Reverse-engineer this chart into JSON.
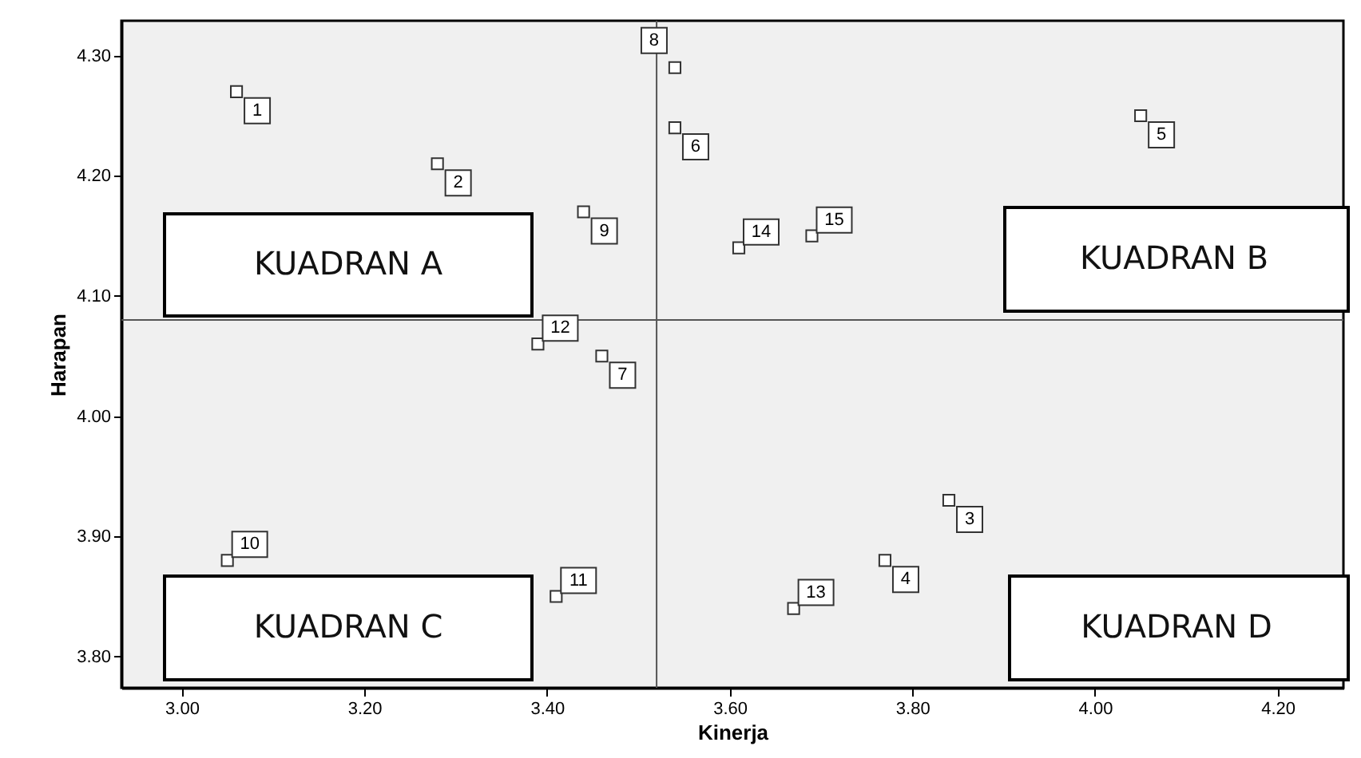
{
  "chart_data": {
    "type": "scatter",
    "xlabel": "Kinerja",
    "ylabel": "Harapan",
    "x": [
      3.06,
      3.28,
      3.84,
      3.77,
      4.05,
      3.54,
      3.46,
      3.54,
      3.44,
      3.05,
      3.41,
      3.39,
      3.67,
      3.61,
      3.69
    ],
    "series": [
      {
        "color": "#333333",
        "values": [
          4.27,
          4.21,
          3.93,
          3.88,
          4.25,
          4.24,
          4.05,
          4.29,
          4.17,
          3.88,
          3.85,
          4.06,
          3.84,
          4.14,
          4.15
        ]
      }
    ],
    "marker": "square",
    "grid": false,
    "xlim": [
      2.934,
      4.272
    ],
    "ylim": [
      3.774,
      4.329
    ],
    "xticks": [
      {
        "value": 3.0,
        "label": "3.00"
      },
      {
        "value": 3.2,
        "label": "3.20"
      },
      {
        "value": 3.4,
        "label": "3.40"
      },
      {
        "value": 3.6,
        "label": "3.60"
      },
      {
        "value": 3.8,
        "label": "3.80"
      },
      {
        "value": 4.0,
        "label": "4.00"
      },
      {
        "value": 4.2,
        "label": "4.20"
      }
    ],
    "yticks": [
      {
        "value": 3.8,
        "label": "3.80"
      },
      {
        "value": 3.9,
        "label": "3.90"
      },
      {
        "value": 4.0,
        "label": "4.00"
      },
      {
        "value": 4.1,
        "label": "4.10"
      },
      {
        "value": 4.2,
        "label": "4.20"
      },
      {
        "value": 4.3,
        "label": "4.30"
      }
    ],
    "ref_lines": [
      {
        "axis": "x",
        "value": 3.52,
        "color": "#555555"
      },
      {
        "axis": "y",
        "value": 4.08,
        "color": "#555555"
      }
    ],
    "annotations": [
      "KUADRAN A",
      "KUADRAN B",
      "KUADRAN C",
      "KUADRAN D",
      {
        "text": "1",
        "x": 3.06,
        "y": 4.27
      },
      {
        "text": "2",
        "x": 3.28,
        "y": 4.21
      },
      {
        "text": "3",
        "x": 3.84,
        "y": 3.93
      },
      {
        "text": "4",
        "x": 3.77,
        "y": 3.88
      },
      {
        "text": "5",
        "x": 4.05,
        "y": 4.25
      },
      {
        "text": "6",
        "x": 3.54,
        "y": 4.24
      },
      {
        "text": "7",
        "x": 3.46,
        "y": 4.05
      },
      {
        "text": "8",
        "x": 3.54,
        "y": 4.29
      },
      {
        "text": "9",
        "x": 3.44,
        "y": 4.17
      },
      {
        "text": "10",
        "x": 3.05,
        "y": 3.88
      },
      {
        "text": "11",
        "x": 3.41,
        "y": 3.85
      },
      {
        "text": "12",
        "x": 3.39,
        "y": 4.06
      },
      {
        "text": "13",
        "x": 3.67,
        "y": 3.84
      },
      {
        "text": "14",
        "x": 3.61,
        "y": 4.14
      },
      {
        "text": "15",
        "x": 3.69,
        "y": 4.15
      }
    ]
  }
}
